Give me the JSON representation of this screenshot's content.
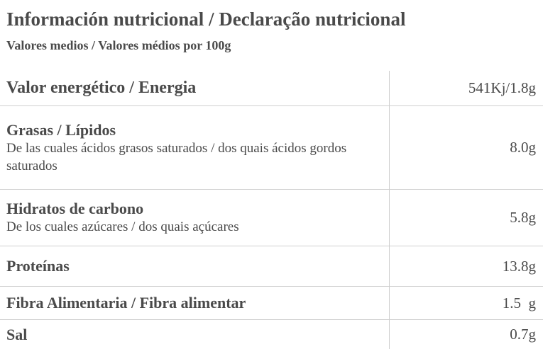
{
  "header": {
    "title": "Información nutricional / Declaração nutricional",
    "subtitle": "Valores medios / Valores médios por 100g"
  },
  "table": {
    "rows": [
      {
        "label": "Valor energético / Energia",
        "value": "541Kj/1.8g"
      },
      {
        "label": "Grasas / Lípidos",
        "sublabel": "De las cuales ácidos grasos saturados / dos quais ácidos gordos saturados",
        "value": "8.0g"
      },
      {
        "label": "Hidratos de carbono",
        "sublabel": "De los cuales azúcares / dos quais açúcares",
        "value": "5.8g"
      },
      {
        "label": "Proteínas",
        "value": "13.8g"
      },
      {
        "label": "Fibra Alimentaria / Fibra alimentar",
        "value": "1.5  g"
      },
      {
        "label": "Sal",
        "value": "0.7g"
      }
    ]
  }
}
